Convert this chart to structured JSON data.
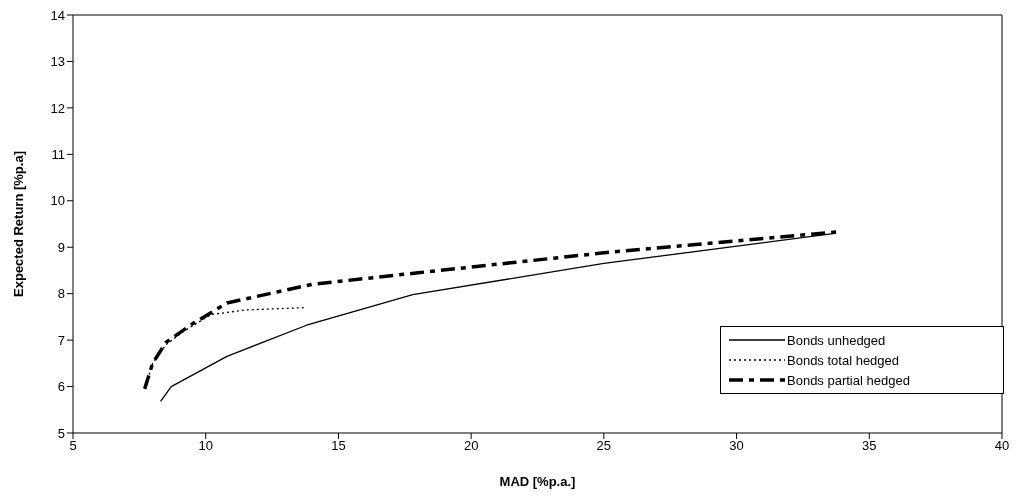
{
  "chart_data": {
    "type": "line",
    "xlabel": "MAD [%p.a.]",
    "ylabel": "Expected Return [%p.a]",
    "xlim": [
      5,
      40
    ],
    "xticks": [
      5,
      10,
      15,
      20,
      25,
      30,
      35,
      40
    ],
    "ylim": [
      5,
      14
    ],
    "yticks": [
      5,
      6,
      7,
      8,
      9,
      10,
      11,
      12,
      13,
      14
    ],
    "grid": false,
    "legend": "bottom right",
    "marker": "none",
    "series": [
      {
        "name": "Bonds unhedged",
        "color": "#000000",
        "line_style": "solid",
        "x": [
          8.3,
          8.7,
          10.8,
          13.8,
          17.8,
          25,
          33.7
        ],
        "values": [
          5.68,
          6.0,
          6.65,
          7.32,
          7.98,
          8.65,
          9.3
        ]
      },
      {
        "name": "Bonds total hedged",
        "color": "#000000",
        "line_style": "dotted",
        "x": [
          7.7,
          8.0,
          8.5,
          9.2,
          10.2,
          11.5,
          13.8
        ],
        "values": [
          5.95,
          6.5,
          6.9,
          7.2,
          7.55,
          7.65,
          7.7
        ]
      },
      {
        "name": "Bonds partial hedged",
        "color": "#000000",
        "line_style": "dashdot",
        "x": [
          7.7,
          8.0,
          8.5,
          9.5,
          10.8,
          14,
          18,
          25,
          33.8
        ],
        "values": [
          5.95,
          6.5,
          6.95,
          7.35,
          7.8,
          8.2,
          8.45,
          8.88,
          9.33
        ]
      }
    ]
  }
}
